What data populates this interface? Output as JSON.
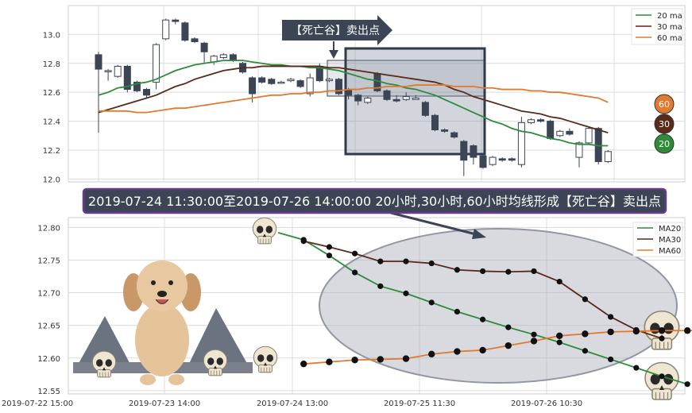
{
  "top_chart": {
    "callout": "【死亡谷】卖出点",
    "ylim": [
      11.98,
      13.2
    ],
    "yticks": [
      "13.0",
      "12.8",
      "12.6",
      "12.4",
      "12.2",
      "12.0"
    ],
    "legend": [
      "20 ma",
      "30 ma",
      "60 ma"
    ],
    "end_badges": [
      "60",
      "30",
      "20"
    ]
  },
  "banner": "2019-07-24 11:30:00至2019-07-26 14:00:00 20小时,30小时,60小时均线形成【死亡谷】卖出点",
  "bottom_chart": {
    "ylim": [
      12.545,
      12.815
    ],
    "yticks": [
      "12.80",
      "12.75",
      "12.70",
      "12.65",
      "12.60",
      "12.55"
    ],
    "xticks": [
      "2019-07-22 15:00",
      "2019-07-23 14:00",
      "2019-07-24 13:00",
      "2019-07-25 11:30",
      "2019-07-26 10:30"
    ],
    "legend": [
      "MA20",
      "MA30",
      "MA60"
    ]
  },
  "colors": {
    "ma20": "#2e8b3a",
    "ma30": "#5a2a1a",
    "ma60": "#e07a2e",
    "up": "#ffffff",
    "down": "#3b4556",
    "badge60": "#e07a2e",
    "badge30": "#5a2a1a",
    "badge20": "#2e8b3a",
    "banner_bg": "#3b4556",
    "banner_border": "#6a3b8a"
  },
  "chart_data": [
    {
      "type": "candlestick",
      "title": "",
      "ylim": [
        11.98,
        13.2
      ],
      "candles": [
        [
          12.86,
          12.76,
          12.88,
          12.32
        ],
        [
          12.75,
          12.75,
          12.76,
          12.68
        ],
        [
          12.71,
          12.78,
          12.79,
          12.7
        ],
        [
          12.78,
          12.62,
          12.79,
          12.6
        ],
        [
          12.67,
          12.61,
          12.68,
          12.6
        ],
        [
          12.62,
          12.58,
          12.63,
          12.56
        ],
        [
          12.67,
          12.93,
          12.94,
          12.62
        ],
        [
          12.97,
          13.1,
          13.11,
          12.96
        ],
        [
          13.1,
          13.09,
          13.11,
          13.07
        ],
        [
          13.08,
          12.96,
          13.09,
          12.95
        ],
        [
          12.97,
          12.95,
          12.98,
          12.94
        ],
        [
          12.94,
          12.88,
          12.95,
          12.8
        ],
        [
          12.81,
          12.85,
          12.86,
          12.79
        ],
        [
          12.84,
          12.86,
          12.87,
          12.83
        ],
        [
          12.86,
          12.82,
          12.87,
          12.81
        ],
        [
          12.8,
          12.74,
          12.81,
          12.73
        ],
        [
          12.7,
          12.59,
          12.71,
          12.53
        ],
        [
          12.7,
          12.67,
          12.71,
          12.66
        ],
        [
          12.69,
          12.66,
          12.7,
          12.65
        ],
        [
          12.67,
          12.67,
          12.68,
          12.66
        ],
        [
          12.68,
          12.69,
          12.7,
          12.67
        ],
        [
          12.68,
          12.64,
          12.69,
          12.63
        ],
        [
          12.59,
          12.7,
          12.73,
          12.57
        ],
        [
          12.78,
          12.68,
          12.8,
          12.67
        ],
        [
          12.68,
          12.69,
          12.7,
          12.67
        ],
        [
          12.69,
          12.59,
          12.7,
          12.58
        ],
        [
          12.62,
          12.58,
          12.63,
          12.55
        ],
        [
          12.58,
          12.54,
          12.59,
          12.51
        ],
        [
          12.53,
          12.56,
          12.57,
          12.52
        ],
        [
          12.73,
          12.61,
          12.74,
          12.6
        ],
        [
          12.61,
          12.55,
          12.62,
          12.54
        ],
        [
          12.55,
          12.54,
          12.58,
          12.53
        ],
        [
          12.55,
          12.57,
          12.6,
          12.54
        ],
        [
          12.55,
          12.56,
          12.58,
          12.55
        ],
        [
          12.53,
          12.44,
          12.54,
          12.43
        ],
        [
          12.44,
          12.34,
          12.45,
          12.33
        ],
        [
          12.34,
          12.33,
          12.35,
          12.32
        ],
        [
          12.32,
          12.29,
          12.33,
          12.28
        ],
        [
          12.26,
          12.13,
          12.27,
          12.02
        ],
        [
          12.23,
          12.15,
          12.24,
          12.1
        ],
        [
          12.16,
          12.08,
          12.17,
          12.07
        ],
        [
          12.1,
          12.15,
          12.16,
          12.09
        ],
        [
          12.14,
          12.13,
          12.15,
          12.12
        ],
        [
          12.14,
          12.13,
          12.15,
          12.12
        ],
        [
          12.1,
          12.39,
          12.43,
          12.08
        ],
        [
          12.39,
          12.41,
          12.42,
          12.38
        ],
        [
          12.41,
          12.4,
          12.42,
          12.39
        ],
        [
          12.4,
          12.28,
          12.41,
          12.27
        ],
        [
          12.3,
          12.33,
          12.34,
          12.29
        ],
        [
          12.33,
          12.31,
          12.35,
          12.3
        ],
        [
          12.15,
          12.25,
          12.26,
          12.08
        ],
        [
          12.25,
          12.35,
          12.36,
          12.24
        ],
        [
          12.35,
          12.12,
          12.36,
          12.1
        ],
        [
          12.12,
          12.19,
          12.2,
          12.11
        ]
      ],
      "series": [
        {
          "name": "20 ma",
          "values": [
            12.58,
            12.6,
            12.63,
            12.64,
            12.66,
            12.67,
            12.69,
            12.72,
            12.75,
            12.77,
            12.79,
            12.8,
            12.81,
            12.82,
            12.82,
            12.82,
            12.81,
            12.8,
            12.79,
            12.79,
            12.78,
            12.78,
            12.77,
            12.77,
            12.76,
            12.75,
            12.73,
            12.71,
            12.69,
            12.68,
            12.66,
            12.65,
            12.63,
            12.62,
            12.6,
            12.58,
            12.55,
            12.52,
            12.49,
            12.46,
            12.43,
            12.4,
            12.38,
            12.35,
            12.33,
            12.32,
            12.3,
            12.28,
            12.27,
            12.25,
            12.24,
            12.24,
            12.23,
            12.23
          ]
        },
        {
          "name": "30 ma",
          "values": [
            12.46,
            12.48,
            12.5,
            12.52,
            12.54,
            12.56,
            12.58,
            12.61,
            12.64,
            12.66,
            12.69,
            12.71,
            12.73,
            12.75,
            12.76,
            12.77,
            12.77,
            12.78,
            12.78,
            12.78,
            12.78,
            12.78,
            12.78,
            12.78,
            12.77,
            12.77,
            12.76,
            12.75,
            12.74,
            12.73,
            12.72,
            12.71,
            12.7,
            12.69,
            12.68,
            12.67,
            12.65,
            12.62,
            12.6,
            12.57,
            12.55,
            12.53,
            12.51,
            12.49,
            12.47,
            12.46,
            12.45,
            12.43,
            12.42,
            12.4,
            12.38,
            12.36,
            12.34,
            12.32
          ]
        },
        {
          "name": "60 ma",
          "values": [
            12.47,
            12.47,
            12.47,
            12.47,
            12.46,
            12.46,
            12.47,
            12.48,
            12.49,
            12.49,
            12.5,
            12.51,
            12.52,
            12.53,
            12.54,
            12.55,
            12.56,
            12.57,
            12.58,
            12.58,
            12.59,
            12.59,
            12.6,
            12.6,
            12.61,
            12.61,
            12.62,
            12.62,
            12.63,
            12.63,
            12.64,
            12.64,
            12.64,
            12.65,
            12.65,
            12.65,
            12.65,
            12.64,
            12.64,
            12.64,
            12.63,
            12.63,
            12.62,
            12.62,
            12.62,
            12.61,
            12.61,
            12.6,
            12.6,
            12.59,
            12.58,
            12.57,
            12.56,
            12.53
          ]
        }
      ]
    },
    {
      "type": "line",
      "title": "",
      "ylim": [
        12.545,
        12.815
      ],
      "x": [
        "2019-07-24 11:30",
        "2019-07-24 12:30",
        "2019-07-24 13:30",
        "2019-07-24 14:30",
        "2019-07-24 15:00",
        "2019-07-25 09:30",
        "2019-07-25 10:00",
        "2019-07-25 10:30",
        "2019-07-25 11:00",
        "2019-07-25 11:30",
        "2019-07-25 13:30",
        "2019-07-25 14:00",
        "2019-07-25 14:30",
        "2019-07-25 15:00",
        "2019-07-26 09:30",
        "2019-07-26 10:00",
        "2019-07-26 10:30",
        "2019-07-26 11:00",
        "2019-07-26 13:30",
        "2019-07-26 14:00"
      ],
      "series": [
        {
          "name": "MA20",
          "values": [
            12.792,
            12.781,
            12.757,
            12.731,
            12.71,
            12.699,
            12.685,
            12.671,
            12.659,
            12.647,
            12.636,
            12.624,
            12.611,
            12.598,
            12.585,
            12.572,
            12.56,
            null,
            null,
            null
          ]
        },
        {
          "name": "MA30",
          "values": [
            null,
            12.779,
            12.77,
            12.76,
            12.748,
            12.748,
            12.745,
            12.735,
            12.733,
            12.732,
            12.733,
            12.717,
            12.69,
            12.663,
            12.643,
            12.63,
            null,
            null,
            null,
            null
          ]
        },
        {
          "name": "MA60",
          "values": [
            null,
            12.591,
            12.594,
            12.597,
            12.598,
            12.599,
            12.606,
            12.61,
            12.612,
            12.619,
            12.626,
            12.634,
            12.637,
            12.64,
            12.641,
            12.642,
            12.642,
            12.643,
            null,
            null
          ]
        }
      ]
    }
  ]
}
